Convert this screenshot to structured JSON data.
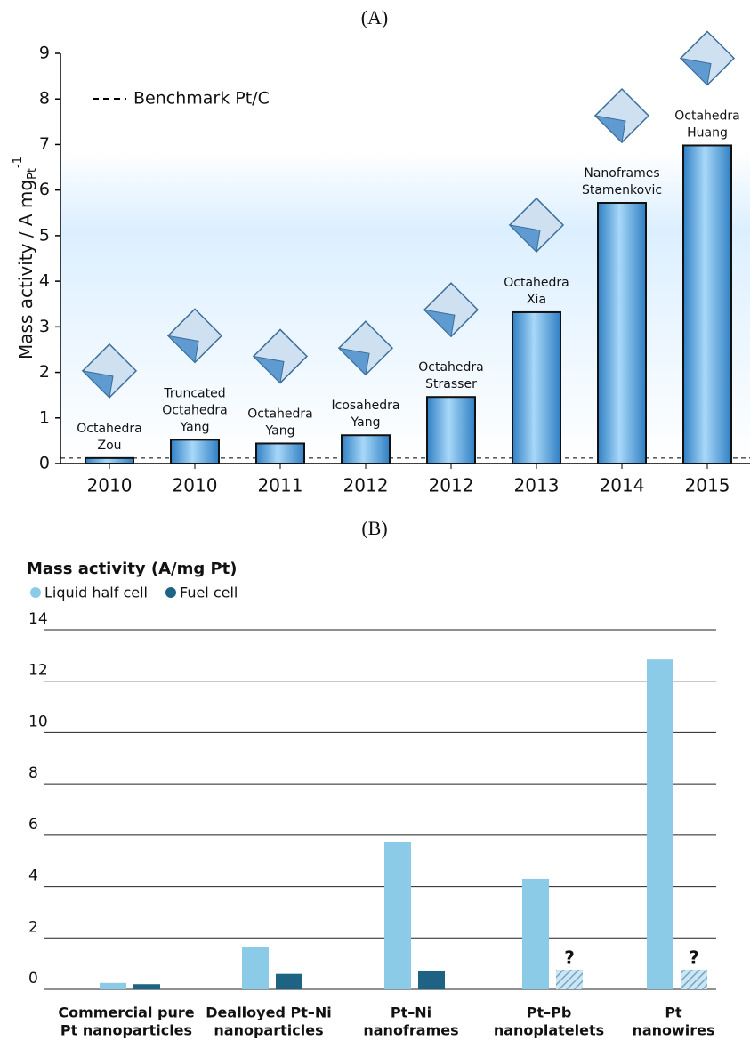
{
  "chart_data": [
    {
      "type": "bar",
      "title": "(A)",
      "ylabel": "Mass activity / A mg",
      "ylabel_sub": "Pt",
      "ylabel_sup": "-1",
      "categories": [
        "2010",
        "2010",
        "2011",
        "2012",
        "2012",
        "2013",
        "2014",
        "2015"
      ],
      "bar_labels": [
        [
          "Octahedra",
          "Zou"
        ],
        [
          "Truncated",
          "Octahedra",
          "Yang"
        ],
        [
          "Octahedra",
          "Yang"
        ],
        [
          "Icosahedra",
          "Yang"
        ],
        [
          "Octahedra",
          "Strasser"
        ],
        [
          "Octahedra",
          "Xia"
        ],
        [
          "Nanoframes",
          "Stamenkovic"
        ],
        [
          "Octahedra",
          "Huang"
        ]
      ],
      "values": [
        0.12,
        0.52,
        0.44,
        0.62,
        1.46,
        3.32,
        5.72,
        6.98
      ],
      "color": "#4a9ad8",
      "benchmark": {
        "label": "Benchmark Pt/C",
        "value": 0.12
      },
      "ylim": [
        0,
        9
      ],
      "yticks": [
        0,
        1,
        2,
        3,
        4,
        5,
        6,
        7,
        8,
        9
      ],
      "grid": false
    },
    {
      "type": "grouped-bar",
      "title": "(B)",
      "subtitle": "Mass activity (A/mg Pt)",
      "categories": [
        [
          "Commercial pure",
          "Pt nanoparticles"
        ],
        [
          "Dealloyed Pt–Ni",
          "nanoparticles"
        ],
        [
          "Pt–Ni",
          "nanoframes"
        ],
        [
          "Pt–Pb",
          "nanoplatelets"
        ],
        [
          "Pt",
          "nanowires"
        ]
      ],
      "series": [
        {
          "name": "Liquid half cell",
          "color": "#8ccbe8",
          "values": [
            0.25,
            1.65,
            5.75,
            4.3,
            12.85
          ]
        },
        {
          "name": "Fuel cell",
          "color": "#1f6384",
          "values": [
            0.2,
            0.6,
            0.7,
            null,
            null
          ],
          "value_labels": [
            null,
            null,
            null,
            "?",
            "?"
          ]
        }
      ],
      "ylim": [
        0,
        15
      ],
      "yticks": [
        0,
        2,
        4,
        6,
        8,
        10,
        12,
        14
      ],
      "grid": true
    }
  ]
}
